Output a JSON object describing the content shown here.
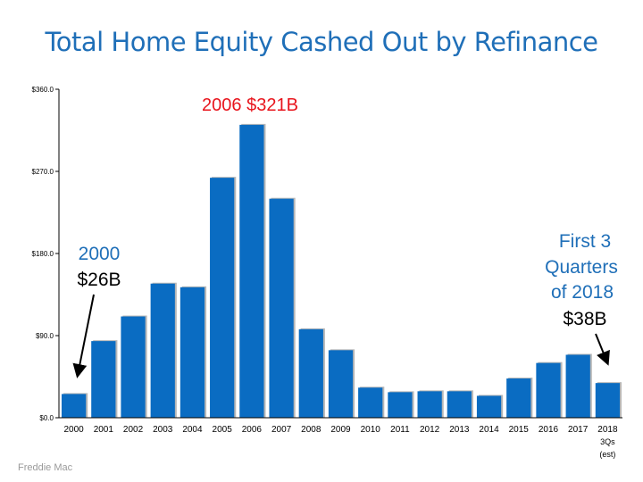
{
  "chart_data": {
    "type": "bar",
    "title": "Total Home Equity Cashed Out by Refinance",
    "categories": [
      "2000",
      "2001",
      "2002",
      "2003",
      "2004",
      "2005",
      "2006",
      "2007",
      "2008",
      "2009",
      "2010",
      "2011",
      "2012",
      "2013",
      "2014",
      "2015",
      "2016",
      "2017",
      "2018"
    ],
    "category_sublabels": {
      "18": [
        "3Qs",
        "(est)"
      ]
    },
    "values": [
      26,
      84,
      111,
      147,
      143,
      263,
      321,
      240,
      97,
      74,
      33,
      28,
      29,
      29,
      24,
      43,
      60,
      69,
      38
    ],
    "ylim": [
      0,
      360
    ],
    "yticks": [
      "$0.0",
      "$90.0",
      "$180.0",
      "$270.0",
      "$360.0"
    ],
    "ytick_values": [
      0,
      90,
      180,
      270,
      360
    ],
    "bar_color": "#0a6cc2",
    "annotations": {
      "peak": {
        "text": "2006 $321B",
        "color": "#e8141c"
      },
      "start": {
        "year": "2000",
        "amount": "$26B",
        "year_color": "#1f6fb8",
        "amount_color": "#000000"
      },
      "end": {
        "lines": [
          "First 3",
          "Quarters",
          "of 2018"
        ],
        "amount": "$38B",
        "lines_color": "#1f6fb8",
        "amount_color": "#000000"
      }
    }
  },
  "source": "Freddie Mac"
}
